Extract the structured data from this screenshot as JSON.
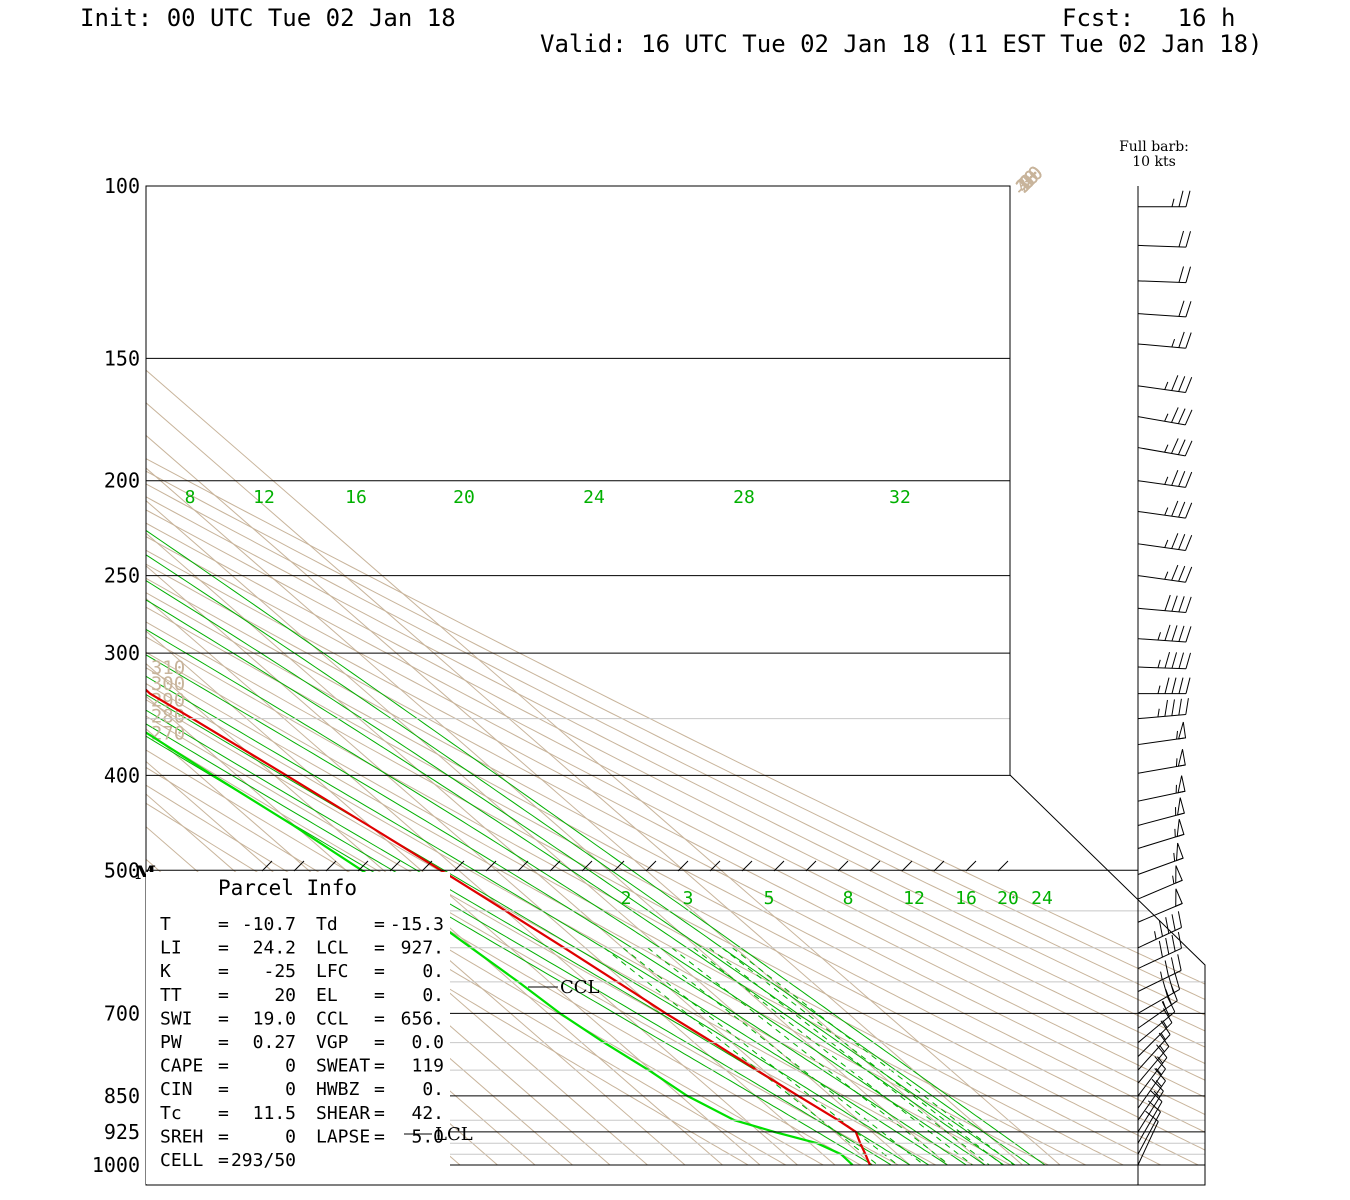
{
  "header": {
    "init": "Init: 00 UTC Tue 02 Jan 18",
    "fcst": "Fcst:   16 h",
    "valid": "Valid: 16 UTC Tue 02 Jan 18 (11 EST Tue 02 Jan 18)"
  },
  "barb_legend": {
    "line1": "Full barb:",
    "line2": "10 kts"
  },
  "colors": {
    "temperature": "#e00000",
    "dewpoint": "#00e000",
    "mixing_ratio": "#00b000",
    "isotherm": "#c8b49b",
    "isobar": "#000000",
    "minor_isobar": "#c8c8c8"
  },
  "chart_data": {
    "type": "line",
    "title": "",
    "xlabel": "",
    "ylabel": "",
    "yscale": "log",
    "ylim": [
      1000,
      100
    ],
    "pressure_labels": [
      "100",
      "150",
      "200",
      "250",
      "300",
      "400",
      "500",
      "700",
      "850",
      "925",
      "1000"
    ],
    "pressure_levels": [
      100,
      150,
      200,
      250,
      300,
      400,
      500,
      700,
      850,
      925,
      1000
    ],
    "isotherm_labels": [
      "-100",
      "-90",
      "-80",
      "-70",
      "-60",
      "-50",
      "-40",
      "-30",
      "-20",
      "-10",
      "0",
      "10",
      "20",
      "30",
      "40"
    ],
    "theta_labels": [
      "320",
      "330",
      "340",
      "350",
      "360",
      "370",
      "380",
      "390",
      "400",
      "410",
      "420",
      "430",
      "440",
      "310",
      "300",
      "290",
      "280",
      "270"
    ],
    "mixing_ratio_labels_upper": [
      "8",
      "12",
      "16",
      "20",
      "24",
      "28",
      "32"
    ],
    "mixing_ratio_labels_lower": [
      "2",
      "3",
      "5",
      "8",
      "12",
      "16",
      "20",
      "24"
    ],
    "series": [
      {
        "id": "temperature",
        "p": [
          1000,
          975,
          950,
          925,
          900,
          850,
          800,
          750,
          700,
          650,
          600,
          550,
          500,
          450,
          400,
          350,
          330,
          300,
          270,
          250,
          220,
          200,
          180,
          160,
          150,
          130,
          115,
          105
        ],
        "t": [
          -10.7,
          -8.6,
          -6.6,
          -4.3,
          -5.4,
          -8.6,
          -11.8,
          -14.9,
          -18.6,
          -21.9,
          -25.6,
          -29.9,
          -34.7,
          -40.3,
          -46.8,
          -54.5,
          -58.1,
          -57.3,
          -57.6,
          -58.3,
          -59.9,
          -61.3,
          -62.5,
          -63.5,
          -64.1,
          -67.8,
          -71.1,
          -73.1
        ]
      },
      {
        "id": "dewpoint",
        "p": [
          1000,
          975,
          950,
          925,
          900,
          850,
          800,
          750,
          700,
          650,
          600,
          550,
          500,
          450,
          400,
          350,
          330,
          300,
          270,
          250,
          220,
          200,
          180,
          160,
          150,
          130,
          115,
          105
        ],
        "t": [
          -15.3,
          -15.1,
          -18.1,
          -26.0,
          -33.1,
          -38.2,
          -40.6,
          -44.0,
          -46.8,
          -48.3,
          -50.4,
          -52.7,
          -55.8,
          -60.3,
          -66.4,
          -72.7,
          -73.2,
          -77.0,
          -81.5,
          -83.4,
          -87.1,
          -90.7,
          -90.1,
          -89.4,
          -88.9,
          -88.8,
          -90.2,
          -92.4
        ]
      }
    ],
    "annotations": [
      "CCL",
      "LCL",
      "M"
    ]
  },
  "parcel_info": {
    "title": "Parcel Info",
    "rows": [
      [
        "T",
        "=",
        "-10.7",
        "Td",
        "=",
        "-15.3"
      ],
      [
        "LI",
        "=",
        "24.2",
        "LCL",
        "=",
        "927."
      ],
      [
        "K",
        "=",
        "-25",
        "LFC",
        "=",
        "0."
      ],
      [
        "TT",
        "=",
        "20",
        "EL",
        "=",
        "0."
      ],
      [
        "SWI",
        "=",
        "19.0",
        "CCL",
        "=",
        "656."
      ],
      [
        "PW",
        "=",
        "0.27",
        "VGP",
        "=",
        "0.0"
      ],
      [
        "CAPE",
        "=",
        "0",
        "SWEAT",
        "=",
        "119"
      ],
      [
        "CIN",
        "=",
        "0",
        "HWBZ",
        "=",
        "0."
      ],
      [
        "Tc",
        "=",
        "11.5",
        "SHEAR",
        "=",
        "42."
      ],
      [
        "SREH",
        "=",
        "0",
        "LAPSE",
        "=",
        "5.0"
      ],
      [
        "CELL",
        "=",
        "293/50",
        "",
        "",
        ""
      ]
    ]
  },
  "wind_profile": {
    "p": [
      105,
      115,
      125,
      135,
      145,
      160,
      172,
      185,
      200,
      215,
      232,
      250,
      270,
      290,
      310,
      330,
      350,
      372,
      398,
      425,
      450,
      475,
      505,
      535,
      565,
      600,
      630,
      665,
      700,
      725,
      750,
      775,
      800,
      825,
      850,
      875,
      900,
      925,
      950,
      975,
      1000
    ],
    "dir": [
      270,
      268,
      268,
      266,
      265,
      262,
      260,
      260,
      262,
      262,
      262,
      262,
      265,
      266,
      268,
      270,
      275,
      278,
      280,
      282,
      285,
      287,
      290,
      293,
      293,
      295,
      295,
      296,
      300,
      305,
      310,
      315,
      318,
      320,
      323,
      325,
      325,
      328,
      330,
      332,
      335
    ],
    "speed_kt": [
      25,
      20,
      20,
      20,
      25,
      35,
      35,
      35,
      35,
      35,
      35,
      35,
      40,
      45,
      45,
      45,
      45,
      55,
      55,
      55,
      55,
      55,
      55,
      55,
      50,
      45,
      40,
      35,
      30,
      25,
      20,
      18,
      15,
      15,
      15,
      15,
      15,
      15,
      12,
      10,
      10
    ]
  }
}
